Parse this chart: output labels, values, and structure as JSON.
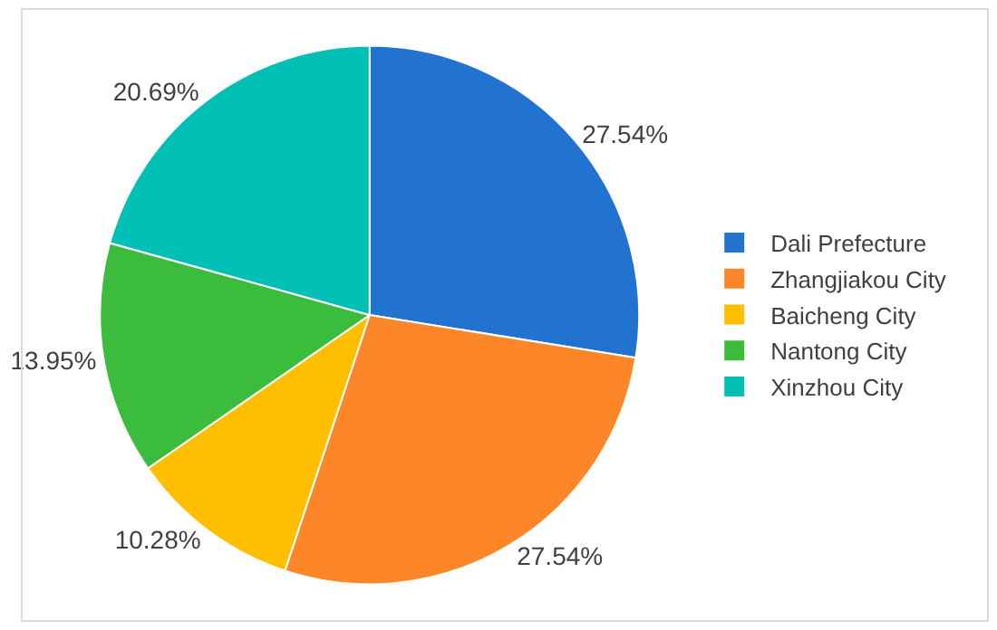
{
  "chart_data": {
    "type": "pie",
    "categories": [
      "Dali Prefecture",
      "Zhangjiakou City",
      "Baicheng City",
      "Nantong City",
      "Xinzhou City"
    ],
    "values": [
      27.54,
      27.54,
      10.28,
      13.95,
      20.69
    ],
    "value_labels": [
      "27.54%",
      "27.54%",
      "10.28%",
      "13.95%",
      "20.69%"
    ],
    "colors": [
      "#2272d0",
      "#fd8628",
      "#ffbf00",
      "#3cbc3c",
      "#00bfb5"
    ],
    "legend": "right"
  }
}
